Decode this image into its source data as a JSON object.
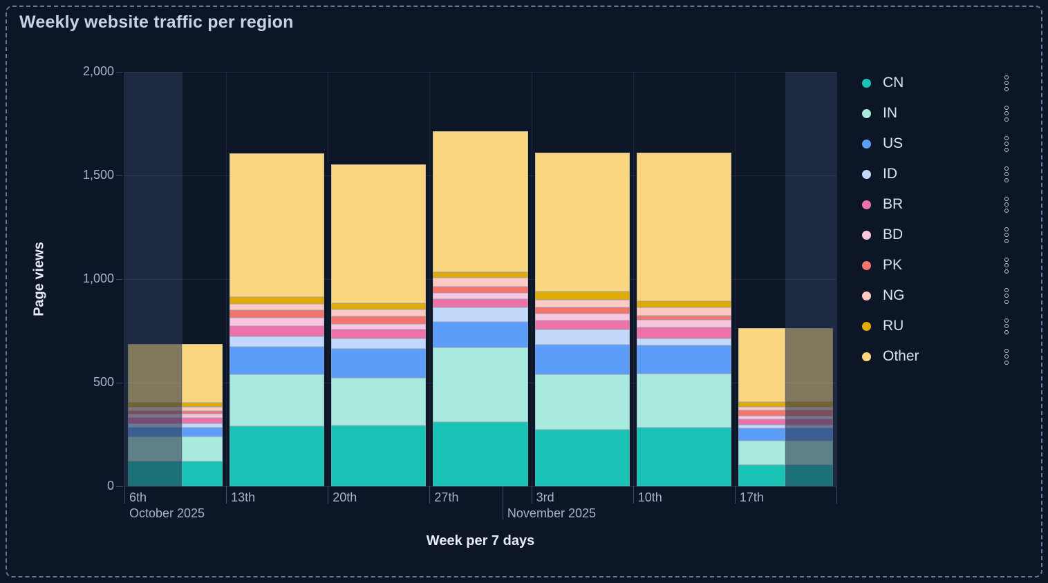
{
  "panel": {
    "title": "Weekly website traffic per region"
  },
  "colors": {
    "background": "#0D1626",
    "panel_dashed_border": "#64779B",
    "partial_week_overlay_bg": "#1E2A42",
    "axis_text": "#A6B3CD",
    "axis_title_text": "#E8EDF8",
    "title_text": "#C8D2E6",
    "legend_text": "#D9E1F2"
  },
  "legend_options_icon": "kebab-menu",
  "chart_data": {
    "type": "bar",
    "stacked": true,
    "title": "Weekly website traffic per region",
    "xlabel": "Week per 7 days",
    "ylabel": "Page views",
    "ylim": [
      0,
      2000
    ],
    "yticks": [
      0,
      500,
      1000,
      1500,
      2000
    ],
    "ytick_labels": [
      "0",
      "500",
      "1,000",
      "1,500",
      "2,000"
    ],
    "grid": true,
    "legend_position": "right",
    "categories": [
      {
        "label": "6th"
      },
      {
        "label": "13th"
      },
      {
        "label": "20th"
      },
      {
        "label": "27th"
      },
      {
        "label": "3rd"
      },
      {
        "label": "10th"
      },
      {
        "label": "17th"
      }
    ],
    "months": [
      {
        "label": "October 2025",
        "x_frac": 0,
        "tall_tick": false
      },
      {
        "label": "November 2025",
        "x_frac": 0.531,
        "tall_tick": true
      }
    ],
    "series": [
      {
        "name": "CN",
        "color": "#19C3B5",
        "values": [
          120,
          290,
          295,
          310,
          275,
          285,
          105
        ]
      },
      {
        "name": "IN",
        "color": "#A8EBDE",
        "values": [
          120,
          250,
          230,
          360,
          265,
          260,
          115
        ]
      },
      {
        "name": "US",
        "color": "#5C9DF9",
        "values": [
          45,
          135,
          140,
          125,
          145,
          135,
          60
        ]
      },
      {
        "name": "ID",
        "color": "#C3D9FC",
        "values": [
          18,
          50,
          47,
          67,
          72,
          32,
          17
        ]
      },
      {
        "name": "BR",
        "color": "#EE72AA",
        "values": [
          27,
          50,
          45,
          41,
          43,
          54,
          27
        ]
      },
      {
        "name": "BD",
        "color": "#FAC6DF",
        "values": [
          20,
          37,
          28,
          30,
          32,
          36,
          17
        ]
      },
      {
        "name": "PK",
        "color": "#F5746C",
        "values": [
          15,
          37,
          34,
          32,
          32,
          22,
          27
        ]
      },
      {
        "name": "NG",
        "color": "#FDC9C3",
        "values": [
          20,
          30,
          34,
          42,
          36,
          39,
          17
        ]
      },
      {
        "name": "RU",
        "color": "#E2AB04",
        "values": [
          17,
          34,
          30,
          27,
          40,
          31,
          23
        ]
      },
      {
        "name": "Other",
        "color": "#FAD77E",
        "values": [
          285,
          695,
          670,
          680,
          670,
          715,
          355
        ]
      }
    ],
    "partial_weeks": [
      {
        "category_index": 0,
        "faded_side": "left",
        "faded_fraction": 0.57
      },
      {
        "category_index": 6,
        "faded_side": "right",
        "faded_fraction": 0.5
      }
    ]
  }
}
